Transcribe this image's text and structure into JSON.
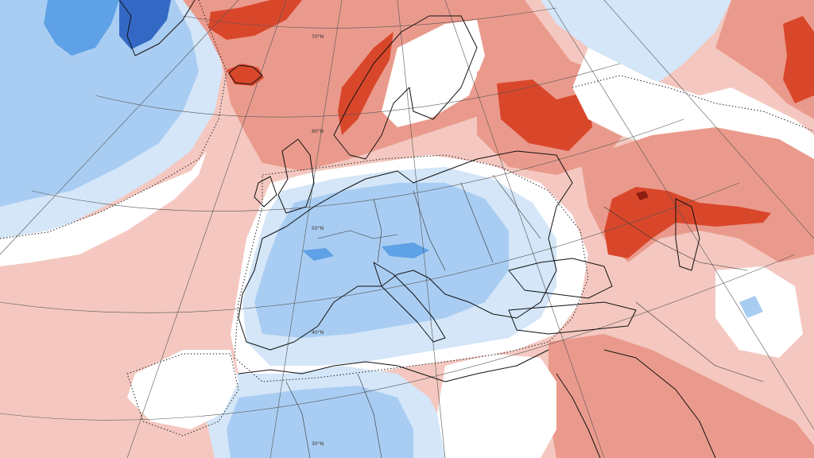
{
  "map": {
    "type": "temperature-anomaly",
    "palette": {
      "strong_warm": "#d9472b",
      "warm": "#ea9a8c",
      "light_warm": "#f4c8c0",
      "neutral": "#ffffff",
      "light_cool": "#d4e6f8",
      "cool": "#a9cdf2",
      "strong_cool": "#5ea1e6",
      "very_cold": "#3369c4",
      "darkest_warm": "#8f1e12"
    },
    "latitude_labels": [
      "70°N",
      "60°N",
      "50°N",
      "40°N",
      "30°N"
    ],
    "icons": {
      "grid": "graticule-lines",
      "coast": "coastline",
      "contour": "dotted-zero-contour"
    }
  }
}
